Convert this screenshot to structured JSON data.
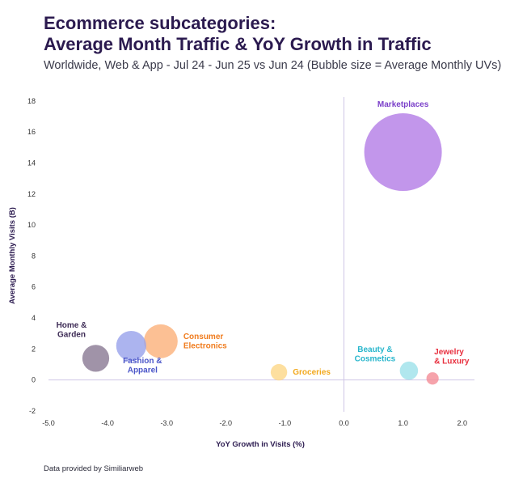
{
  "header": {
    "title_line1": "Ecommerce subcategories:",
    "title_line2": "Average Month Traffic & YoY Growth in Traffic",
    "subtitle": "Worldwide, Web & App - Jul 24 - Jun 25 vs Jun 24  (Bubble size = Average Monthly UVs)"
  },
  "footer": {
    "source": "Data provided by Similiarweb"
  },
  "chart_data": {
    "type": "scatter",
    "subtype": "bubble",
    "title": "Average Month Traffic & YoY Growth in Traffic",
    "xlabel": "YoY Growth in Visits (%)",
    "ylabel": "Average Monthly Visits (B)",
    "xlim": [
      -5.0,
      2.2
    ],
    "ylim": [
      -2,
      18
    ],
    "x_ticks": [
      -5.0,
      -4.0,
      -3.0,
      -2.0,
      -1.0,
      0.0,
      1.0,
      2.0
    ],
    "x_tick_labels": [
      "-5.0",
      "-4.0",
      "-3.0",
      "-2.0",
      "-1.0",
      "0.0",
      "1.0",
      "2.0"
    ],
    "y_ticks": [
      -2,
      0,
      2,
      4,
      6,
      8,
      10,
      12,
      14,
      16,
      18
    ],
    "y_tick_labels": [
      "-2",
      "0",
      "2",
      "4",
      "6",
      "8",
      "10",
      "12",
      "14",
      "16",
      "18"
    ],
    "zero_lines": true,
    "grid": false,
    "series": [
      {
        "name": "Marketplaces",
        "label_lines": [
          "Marketplaces"
        ],
        "x": 1.0,
        "y": 14.7,
        "size": 100,
        "color": "#b57fe6",
        "label_color": "#7a3fc9",
        "label_position": "above"
      },
      {
        "name": "Consumer Electronics",
        "label_lines": [
          "Consumer",
          "Electronics"
        ],
        "x": -3.1,
        "y": 2.5,
        "size": 19,
        "color": "#fbb27c",
        "label_color": "#f07c1e",
        "label_position": "right"
      },
      {
        "name": "Fashion & Apparel",
        "label_lines": [
          "Fashion &",
          "Apparel"
        ],
        "x": -3.6,
        "y": 2.2,
        "size": 15,
        "color": "#9aa3ec",
        "label_color": "#4a55c8",
        "label_position": "below"
      },
      {
        "name": "Home & Garden",
        "label_lines": [
          "Home &",
          "Garden"
        ],
        "x": -4.2,
        "y": 1.4,
        "size": 12,
        "color": "#8b7b95",
        "label_color": "#3d2b55",
        "label_position": "above-left"
      },
      {
        "name": "Groceries",
        "label_lines": [
          "Groceries"
        ],
        "x": -1.1,
        "y": 0.5,
        "size": 4.5,
        "color": "#fcd88a",
        "label_color": "#f2a81c",
        "label_position": "right"
      },
      {
        "name": "Beauty & Cosmetics",
        "label_lines": [
          "Beauty &",
          "Cosmetics"
        ],
        "x": 1.1,
        "y": 0.6,
        "size": 5.5,
        "color": "#9fe2ea",
        "label_color": "#28b6cc",
        "label_position": "above-left"
      },
      {
        "name": "Jewelry & Luxury",
        "label_lines": [
          "Jewelry",
          "& Luxury"
        ],
        "x": 1.5,
        "y": 0.1,
        "size": 2.5,
        "color": "#f48f98",
        "label_color": "#e8303f",
        "label_position": "above-right"
      }
    ]
  }
}
